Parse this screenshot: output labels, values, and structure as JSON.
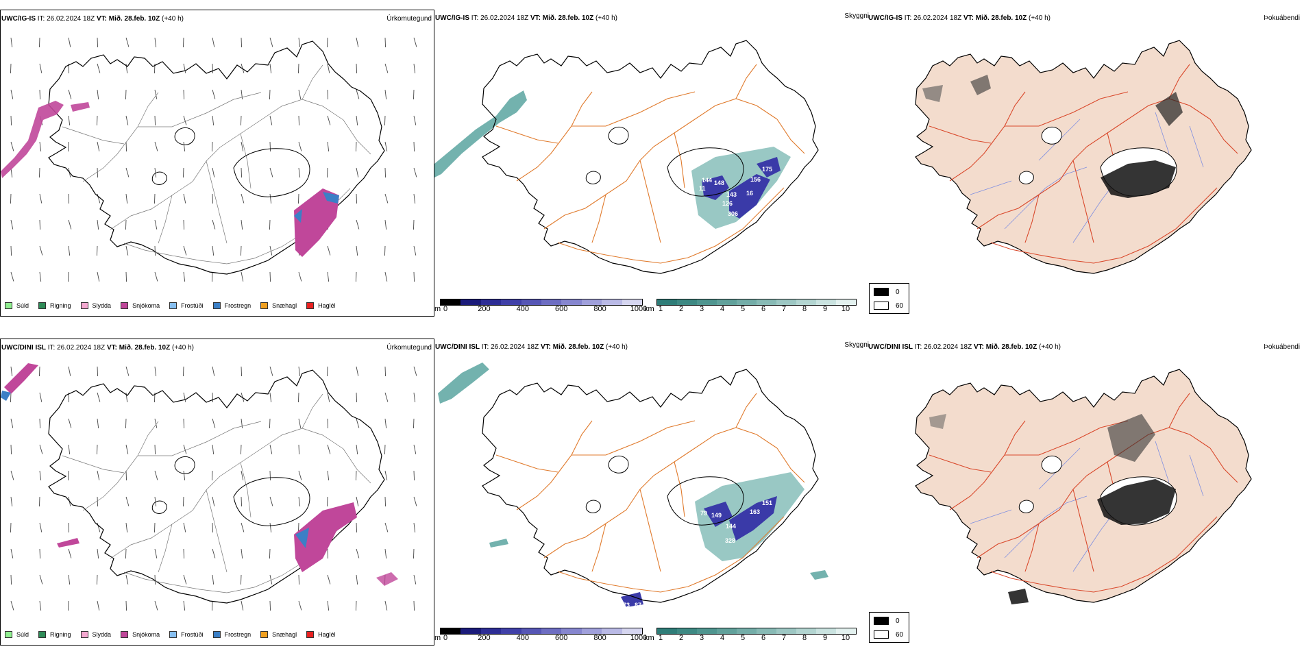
{
  "colors": {
    "coast": "#000000",
    "roads_orange": "#e07a2c",
    "roads_red": "#d9482b",
    "rivers_blue": "#7f8fe0",
    "land_beige": "#f3dccd",
    "snow_magenta": "#c0479a",
    "frost_blue": "#3b7fc6",
    "visibility_teal": "#4f9f9a",
    "visibility_blue": "#3a3aa8"
  },
  "rows": [
    {
      "model": "UWC/IG-IS",
      "precip": {
        "header_it": "IT: 26.02.2024 18Z",
        "header_vt_label": "VT: Mið. 28.feb. 10Z",
        "header_lead": "(+40 h)",
        "title": "Úrkomutegund"
      },
      "vis": {
        "header_it": "IT: 26.02.2024 18Z",
        "header_vt_label": "VT: Mið. 28.feb. 10Z",
        "header_lead": "(+40 h)",
        "title": "Skyggni",
        "labels": [
          "144",
          "148",
          "11",
          "143",
          "156",
          "175",
          "126",
          "16",
          "306"
        ]
      },
      "fog": {
        "header_it": "IT: 26.02.2024 18Z",
        "header_vt_label": "VT: Mið. 28.feb. 10Z",
        "header_lead": "(+40 h)",
        "title": "Þokuábendi"
      }
    },
    {
      "model": "UWC/DINI ISL",
      "precip": {
        "header_it": "IT: 26.02.2024 18Z",
        "header_vt_label": "VT: Mið. 28.feb. 10Z",
        "header_lead": "(+40 h)",
        "title": "Úrkomutegund"
      },
      "vis": {
        "header_it": "IT: 26.02.2024 18Z",
        "header_vt_label": "VT: Mið. 28.feb. 10Z",
        "header_lead": "(+40 h)",
        "title": "Skyggni",
        "labels": [
          "79",
          "149",
          "163",
          "151",
          "144",
          "328",
          "73",
          "87"
        ]
      },
      "fog": {
        "header_it": "IT: 26.02.2024 18Z",
        "header_vt_label": "VT: Mið. 28.feb. 10Z",
        "header_lead": "(+40 h)",
        "title": "Þokuábendi"
      }
    }
  ],
  "precip_legend": [
    {
      "label": "Súld",
      "color": "#90ee90"
    },
    {
      "label": "Rigning",
      "color": "#2e8b57"
    },
    {
      "label": "Slydda",
      "color": "#f4a8d0"
    },
    {
      "label": "Snjókoma",
      "color": "#c0479a"
    },
    {
      "label": "Frostúði",
      "color": "#87bff0"
    },
    {
      "label": "Frostregn",
      "color": "#3b7fc6"
    },
    {
      "label": "Snæhagl",
      "color": "#f0a020"
    },
    {
      "label": "Haglél",
      "color": "#e82020"
    }
  ],
  "vis_colorbar_m": {
    "unit": "m",
    "ticks": [
      "0",
      "200",
      "400",
      "600",
      "800",
      "1000"
    ],
    "colors": [
      "#000000",
      "#1b1b7a",
      "#2d2d95",
      "#4040a8",
      "#5656b5",
      "#6d6dc2",
      "#8686cf",
      "#a0a0db",
      "#babae6",
      "#d6d6f0"
    ]
  },
  "vis_colorbar_km": {
    "unit": "km",
    "ticks": [
      "1",
      "2",
      "3",
      "4",
      "5",
      "6",
      "7",
      "8",
      "9",
      "10"
    ],
    "colors": [
      "#2f7d78",
      "#3e8983",
      "#4f958f",
      "#61a19b",
      "#74ada8",
      "#88bab5",
      "#9dc7c3",
      "#b3d5d1",
      "#cae3e0",
      "#e3f1ef"
    ]
  },
  "fog_legend": [
    {
      "label": "0",
      "color": "#000000"
    },
    {
      "label": "60",
      "color": "#ffffff"
    }
  ]
}
